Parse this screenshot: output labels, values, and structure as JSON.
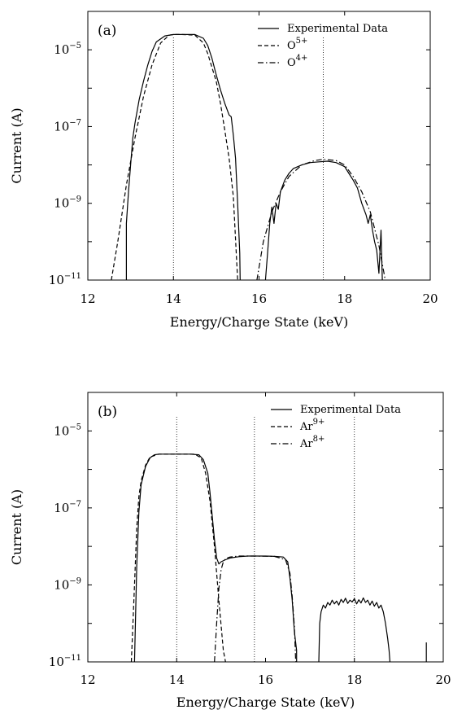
{
  "chart_data": [
    {
      "type": "line",
      "panel_label": "(a)",
      "xlabel": "Energy/Charge State (keV)",
      "ylabel": "Current (A)",
      "xlim": [
        12,
        20
      ],
      "ylim": [
        1e-11,
        0.0001
      ],
      "yscale": "log",
      "xticks": [
        12,
        14,
        16,
        18,
        20
      ],
      "yticks": [
        1e-11,
        1e-09,
        1e-07,
        1e-05
      ],
      "ytick_labels": [
        {
          "base": "10",
          "exp": "−11"
        },
        {
          "base": "10",
          "exp": "−9"
        },
        {
          "base": "10",
          "exp": "−7"
        },
        {
          "base": "10",
          "exp": "−5"
        }
      ],
      "grid": false,
      "legend_position": "top-right",
      "legend": [
        {
          "text": "Experimental Data",
          "sup": "",
          "style": "solid"
        },
        {
          "text": "O",
          "sup": "5+",
          "style": "dashed"
        },
        {
          "text": "O",
          "sup": "4+",
          "style": "dashdot"
        }
      ],
      "reference_lines_x": [
        14.0,
        17.5
      ],
      "series": [
        {
          "style": "solid",
          "x": [
            12.9,
            12.9,
            12.95,
            13.0,
            13.05,
            13.1,
            13.2,
            13.3,
            13.4,
            13.5,
            13.6,
            13.8,
            14.0,
            14.2,
            14.5,
            14.7,
            14.8,
            14.9,
            15.0,
            15.1,
            15.2,
            15.3,
            15.35,
            15.4,
            15.45,
            15.5,
            15.55,
            15.56
          ],
          "y": [
            1e-11,
            3e-10,
            2e-09,
            1e-08,
            5e-08,
            1.2e-07,
            5e-07,
            1.5e-06,
            4e-06,
            9e-06,
            1.6e-05,
            2.3e-05,
            2.5e-05,
            2.5e-05,
            2.5e-05,
            2e-05,
            1.3e-05,
            6e-06,
            2.2e-06,
            9e-07,
            4e-07,
            2e-07,
            1.8e-07,
            6e-08,
            1.5e-08,
            1e-09,
            5e-11,
            1e-11
          ]
        },
        {
          "style": "dashed",
          "x": [
            12.55,
            12.7,
            12.9,
            13.1,
            13.3,
            13.5,
            13.7,
            13.9,
            14.0,
            14.2,
            14.5,
            14.7,
            14.8,
            15.0,
            15.1,
            15.2,
            15.3,
            15.4,
            15.5
          ],
          "y": [
            1e-11,
            1e-10,
            3e-09,
            5e-08,
            6e-07,
            4e-06,
            1.5e-05,
            2.4e-05,
            2.5e-05,
            2.5e-05,
            2.4e-05,
            1.5e-05,
            8e-06,
            1.5e-06,
            4e-07,
            8e-08,
            1.5e-08,
            1.5e-09,
            1e-11
          ]
        },
        {
          "style": "dashdot",
          "x": [
            15.95,
            16.1,
            16.3,
            16.5,
            16.7,
            17.0,
            17.3,
            17.5,
            17.8,
            18.0,
            18.2,
            18.4,
            18.6,
            18.8,
            18.95
          ],
          "y": [
            1e-11,
            1e-10,
            6e-10,
            2e-09,
            5e-09,
            1e-08,
            1.3e-08,
            1.4e-08,
            1.3e-08,
            1e-08,
            5e-09,
            2e-09,
            6e-10,
            8e-11,
            1e-11
          ]
        },
        {
          "style": "solid",
          "x": [
            16.15,
            16.2,
            16.25,
            16.3,
            16.35,
            16.4,
            16.45,
            16.5,
            16.6,
            16.7,
            16.8,
            17.0,
            17.2,
            17.4,
            17.6,
            17.8,
            18.0,
            18.1,
            18.2,
            18.3,
            18.4,
            18.5,
            18.55,
            18.6,
            18.65,
            18.7,
            18.75,
            18.8,
            18.85,
            18.88
          ],
          "y": [
            1e-11,
            5e-11,
            3e-10,
            8e-10,
            3e-10,
            1e-09,
            7e-10,
            2e-09,
            4e-09,
            6e-09,
            8e-09,
            1e-08,
            1.15e-08,
            1.2e-08,
            1.25e-08,
            1.15e-08,
            9e-09,
            6e-09,
            4e-09,
            2.5e-09,
            1e-09,
            5e-10,
            3e-10,
            5e-10,
            2e-10,
            1e-10,
            6e-11,
            1.5e-11,
            2e-10,
            1e-11
          ]
        }
      ]
    },
    {
      "type": "line",
      "panel_label": "(b)",
      "xlabel": "Energy/Charge State (keV)",
      "ylabel": "Current (A)",
      "xlim": [
        12,
        20
      ],
      "ylim": [
        1e-11,
        0.0001
      ],
      "yscale": "log",
      "xticks": [
        12,
        14,
        16,
        18,
        20
      ],
      "yticks": [
        1e-11,
        1e-09,
        1e-07,
        1e-05
      ],
      "ytick_labels": [
        {
          "base": "10",
          "exp": "−11"
        },
        {
          "base": "10",
          "exp": "−9"
        },
        {
          "base": "10",
          "exp": "−7"
        },
        {
          "base": "10",
          "exp": "−5"
        }
      ],
      "grid": false,
      "legend_position": "top-right",
      "legend": [
        {
          "text": "Experimental Data",
          "sup": "",
          "style": "solid"
        },
        {
          "text": "Ar",
          "sup": "9+",
          "style": "dashed"
        },
        {
          "text": "Ar",
          "sup": "8+",
          "style": "dashdot"
        }
      ],
      "reference_lines_x": [
        14.0,
        15.75,
        18.0
      ],
      "series": [
        {
          "style": "solid",
          "x": [
            13.05,
            13.1,
            13.15,
            13.2,
            13.3,
            13.4,
            13.5,
            13.6,
            13.7,
            14.0,
            14.3,
            14.5,
            14.6,
            14.7,
            14.75,
            14.8,
            14.85,
            14.9,
            14.95,
            15.0,
            15.1,
            15.2,
            15.4,
            15.6,
            15.8,
            16.0,
            16.2,
            16.4,
            16.5,
            16.55,
            16.6,
            16.65,
            16.7,
            16.7
          ],
          "y": [
            1e-11,
            3e-09,
            8e-08,
            4e-07,
            1.2e-06,
            2e-06,
            2.4e-06,
            2.5e-06,
            2.5e-06,
            2.5e-06,
            2.5e-06,
            2.4e-06,
            1.8e-06,
            8e-07,
            2.5e-07,
            6e-08,
            1.5e-08,
            5e-09,
            3.5e-09,
            4e-09,
            4.5e-09,
            5e-09,
            5.4e-09,
            5.6e-09,
            5.6e-09,
            5.6e-09,
            5.5e-09,
            5.3e-09,
            4e-09,
            1.5e-09,
            4e-10,
            6e-11,
            2e-11,
            1e-11
          ]
        },
        {
          "style": "dashed",
          "x": [
            12.98,
            13.05,
            13.1,
            13.15,
            13.2,
            13.3,
            13.4,
            13.6,
            14.0,
            14.4,
            14.55,
            14.65,
            14.75,
            14.85,
            14.95,
            15.05,
            15.1
          ],
          "y": [
            1e-11,
            1e-09,
            3e-08,
            2e-07,
            5e-07,
            1.3e-06,
            2.1e-06,
            2.5e-06,
            2.5e-06,
            2.5e-06,
            2e-06,
            8e-07,
            1.5e-07,
            1e-08,
            4e-10,
            2e-11,
            1e-11
          ]
        },
        {
          "style": "dashdot",
          "x": [
            14.85,
            14.9,
            14.95,
            15.0,
            15.05,
            15.1,
            15.2,
            15.4,
            15.75,
            16.2,
            16.45,
            16.55,
            16.6,
            16.65,
            16.68
          ],
          "y": [
            1e-11,
            1e-10,
            8e-10,
            2.5e-09,
            4e-09,
            4.8e-09,
            5.3e-09,
            5.6e-09,
            5.6e-09,
            5.5e-09,
            4.5e-09,
            2e-09,
            5e-10,
            8e-11,
            1e-11
          ]
        },
        {
          "style": "solid",
          "x": [
            17.2,
            17.22,
            17.25,
            17.3,
            17.35,
            17.4,
            17.45,
            17.5,
            17.55,
            17.6,
            17.65,
            17.7,
            17.75,
            17.8,
            17.85,
            17.9,
            17.95,
            18.0,
            18.05,
            18.1,
            18.15,
            18.2,
            18.25,
            18.3,
            18.35,
            18.4,
            18.45,
            18.5,
            18.55,
            18.6,
            18.65,
            18.7,
            18.75,
            18.78,
            18.8
          ],
          "y": [
            1e-11,
            1e-10,
            2e-10,
            3e-10,
            2.5e-10,
            3.5e-10,
            3e-10,
            4e-10,
            3.2e-10,
            3.8e-10,
            3e-10,
            4.2e-10,
            3.5e-10,
            4.5e-10,
            3.3e-10,
            4e-10,
            3.6e-10,
            4.4e-10,
            3.2e-10,
            4.1e-10,
            3.4e-10,
            4.6e-10,
            3.5e-10,
            4e-10,
            3e-10,
            3.8e-10,
            2.8e-10,
            3.5e-10,
            2.5e-10,
            3e-10,
            2e-10,
            1e-10,
            4e-11,
            2e-11,
            1e-11
          ]
        },
        {
          "style": "solid",
          "x": [
            19.62,
            19.62
          ],
          "y": [
            1e-11,
            3.2e-11
          ]
        }
      ]
    }
  ]
}
